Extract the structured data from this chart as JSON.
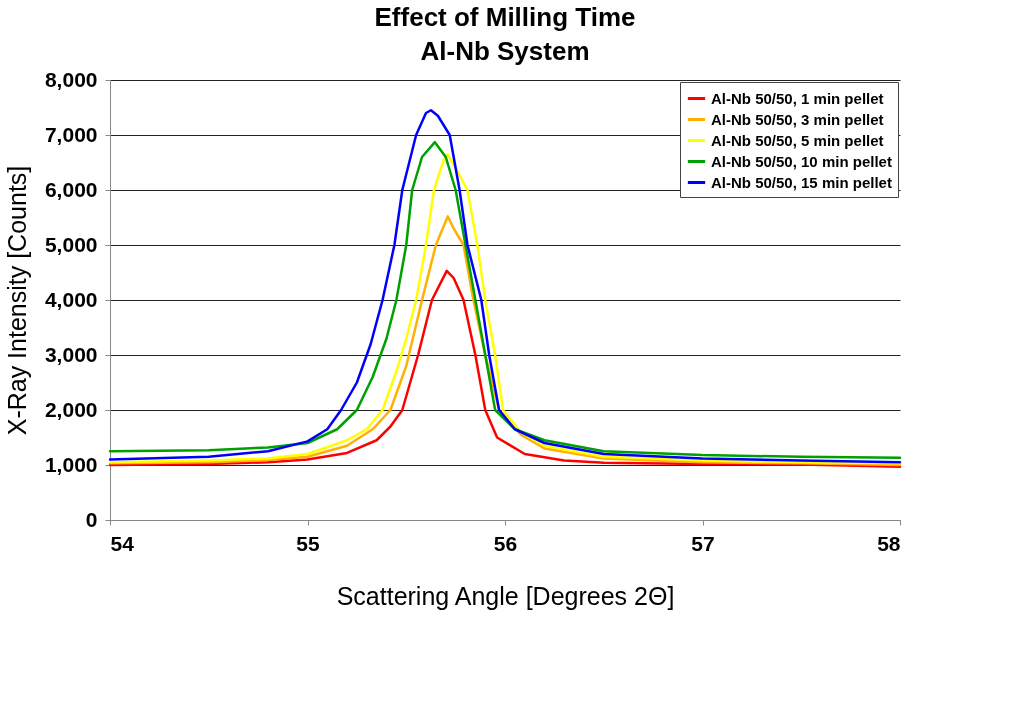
{
  "chart_data": {
    "type": "line",
    "title": "Effect of Milling Time\nAl-Nb System",
    "xlabel": "Scattering Angle [Degrees 2Θ]",
    "ylabel": "X-Ray Intensity  [Counts]",
    "xlim": [
      54,
      58
    ],
    "xticks": [
      54,
      55,
      56,
      57,
      58
    ],
    "ylim": [
      0,
      8000
    ],
    "yticks": [
      0,
      {
        "value": 1000,
        "label": "1,000"
      },
      {
        "value": 2000,
        "label": "2,000"
      },
      {
        "value": 3000,
        "label": "3,000"
      },
      {
        "value": 4000,
        "label": "4,000"
      },
      {
        "value": 5000,
        "label": "5,000"
      },
      {
        "value": 6000,
        "label": "6,000"
      },
      {
        "value": 7000,
        "label": "7,000"
      },
      {
        "value": 8000,
        "label": "8,000"
      }
    ],
    "grid": "y",
    "legend": "top right",
    "marker": "none",
    "line_style": "solid",
    "series": [
      {
        "name": "Al-Nb 50/50, 1 min pellet",
        "color": "#ff0000",
        "x": [
          54,
          54.5,
          54.8,
          55,
          55.2,
          55.35,
          55.42,
          55.48,
          55.56,
          55.63,
          55.705,
          55.74,
          55.79,
          55.85,
          55.9,
          55.96,
          56.1,
          56.3,
          56.5,
          57,
          57.5,
          58
        ],
        "values": [
          1000,
          1020,
          1050,
          1100,
          1220,
          1450,
          1700,
          2000,
          3000,
          4000,
          4530,
          4400,
          4000,
          3000,
          2000,
          1500,
          1200,
          1080,
          1040,
          1020,
          1010,
          970
        ]
      },
      {
        "name": "Al-Nb 50/50, 3 min pellet",
        "color": "#ffb000",
        "x": [
          54,
          54.5,
          54.8,
          55,
          55.2,
          55.33,
          55.42,
          55.5,
          55.58,
          55.65,
          55.71,
          55.74,
          55.79,
          55.84,
          55.9,
          55.97,
          56.08,
          56.2,
          56.5,
          57,
          57.5,
          58
        ],
        "values": [
          1030,
          1050,
          1090,
          1150,
          1350,
          1650,
          2000,
          2800,
          4000,
          5000,
          5520,
          5300,
          5000,
          4000,
          3000,
          2000,
          1550,
          1300,
          1120,
          1050,
          1030,
          1000
        ]
      },
      {
        "name": "Al-Nb 50/50, 5 min pellet",
        "color": "#ffff00",
        "x": [
          54,
          54.5,
          54.8,
          55,
          55.2,
          55.3,
          55.38,
          55.45,
          55.5,
          55.55,
          55.6,
          55.64,
          55.69,
          55.71,
          55.75,
          55.81,
          55.86,
          55.9,
          55.95,
          55.99,
          56.08,
          56.2,
          56.5,
          57,
          57.5,
          58
        ],
        "values": [
          1050,
          1080,
          1120,
          1200,
          1450,
          1650,
          2000,
          2700,
          3300,
          4000,
          5000,
          6000,
          6550,
          6650,
          6400,
          6000,
          5000,
          4000,
          3000,
          2000,
          1600,
          1350,
          1150,
          1080,
          1050,
          1030
        ]
      },
      {
        "name": "Al-Nb 50/50, 10 min pellet",
        "color": "#00a000",
        "x": [
          54,
          54.5,
          54.8,
          55,
          55.15,
          55.25,
          55.33,
          55.4,
          55.45,
          55.5,
          55.53,
          55.58,
          55.645,
          55.7,
          55.75,
          55.8,
          55.85,
          55.9,
          55.95,
          56.05,
          56.2,
          56.5,
          57,
          57.5,
          58
        ],
        "values": [
          1250,
          1270,
          1320,
          1400,
          1650,
          2000,
          2600,
          3300,
          4000,
          5000,
          6000,
          6600,
          6870,
          6600,
          6000,
          5000,
          4000,
          3000,
          2000,
          1650,
          1450,
          1250,
          1180,
          1150,
          1130
        ]
      },
      {
        "name": "Al-Nb 50/50, 15 min pellet",
        "color": "#0000ff",
        "x": [
          54,
          54.5,
          54.8,
          55,
          55.1,
          55.17,
          55.25,
          55.32,
          55.38,
          55.44,
          55.48,
          55.55,
          55.6,
          55.625,
          55.66,
          55.72,
          55.77,
          55.81,
          55.88,
          55.92,
          55.97,
          56.05,
          56.2,
          56.5,
          57,
          57.5,
          58
        ],
        "values": [
          1100,
          1150,
          1250,
          1430,
          1650,
          2000,
          2500,
          3200,
          4000,
          5000,
          6000,
          7000,
          7400,
          7450,
          7350,
          7000,
          6000,
          5000,
          4000,
          3000,
          2000,
          1650,
          1400,
          1200,
          1120,
          1080,
          1050
        ]
      }
    ]
  }
}
